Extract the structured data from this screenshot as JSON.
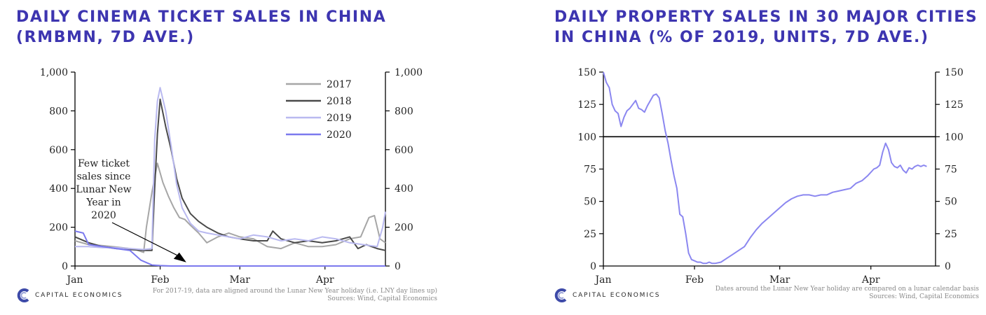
{
  "colors": {
    "title": "#3d35b0",
    "s2017": "#a6a6a6",
    "s2018": "#4a4a4a",
    "s2019": "#b9b9f0",
    "s2020": "#7b79ee",
    "property": "#8b87f0",
    "logo_c": "#3d4aa8"
  },
  "brand": "CAPITAL ECONOMICS",
  "chart_data": [
    {
      "type": "line",
      "title_lines": [
        "DAILY CINEMA TICKET SALES IN CHINA",
        "(RMBMN, 7D AVE.)"
      ],
      "xlabel": "",
      "ylabel": "",
      "ylim": [
        0,
        1000
      ],
      "xlim": [
        0,
        113
      ],
      "yticks": [
        0,
        200,
        400,
        600,
        800,
        1000
      ],
      "ytick_labels": [
        "0",
        "200",
        "400",
        "600",
        "800",
        "1,000"
      ],
      "x_ticks": [
        0,
        31,
        60,
        91
      ],
      "x_tick_labels": [
        "Jan",
        "Feb",
        "Mar",
        "Apr"
      ],
      "legend_position": "top-right",
      "annotation": {
        "lines": [
          "Few ticket",
          "sales since",
          "Lunar New",
          "Year in",
          "2020"
        ],
        "arrow_to": [
          40,
          30
        ]
      },
      "footnote": "For 2017-19, data are aligned around the Lunar New Year holiday (i.e. LNY day lines up)",
      "source": "Sources: Wind, Capital Economics",
      "series": [
        {
          "name": "2017",
          "color_key": "s2017",
          "x": [
            0,
            5,
            10,
            15,
            20,
            22,
            25,
            26,
            28,
            30,
            32,
            34,
            36,
            38,
            40,
            42,
            45,
            48,
            52,
            56,
            60,
            65,
            70,
            75,
            80,
            85,
            90,
            95,
            100,
            104,
            107,
            109,
            111,
            113
          ],
          "y": [
            130,
            110,
            105,
            98,
            90,
            85,
            70,
            200,
            380,
            530,
            430,
            360,
            300,
            250,
            240,
            210,
            170,
            120,
            150,
            170,
            150,
            140,
            100,
            90,
            120,
            100,
            100,
            110,
            140,
            150,
            250,
            260,
            140,
            120
          ]
        },
        {
          "name": "2018",
          "color_key": "s2018",
          "x": [
            0,
            5,
            10,
            15,
            20,
            25,
            28,
            29,
            30,
            31,
            33,
            35,
            37,
            39,
            42,
            45,
            48,
            52,
            56,
            60,
            65,
            70,
            72,
            75,
            80,
            85,
            90,
            95,
            100,
            103,
            106,
            110,
            113
          ],
          "y": [
            150,
            120,
            100,
            90,
            85,
            80,
            80,
            400,
            680,
            860,
            720,
            600,
            450,
            350,
            270,
            230,
            200,
            170,
            150,
            140,
            130,
            130,
            180,
            140,
            120,
            130,
            120,
            130,
            150,
            90,
            110,
            90,
            80
          ]
        },
        {
          "name": "2019",
          "color_key": "s2019",
          "x": [
            0,
            5,
            10,
            15,
            20,
            25,
            28,
            29,
            30,
            31,
            33,
            35,
            37,
            39,
            42,
            45,
            48,
            52,
            56,
            60,
            65,
            70,
            75,
            80,
            85,
            90,
            95,
            100,
            105,
            110,
            112,
            113
          ],
          "y": [
            100,
            100,
            95,
            95,
            90,
            85,
            90,
            650,
            850,
            920,
            800,
            620,
            420,
            300,
            220,
            180,
            170,
            160,
            150,
            140,
            160,
            150,
            130,
            140,
            130,
            150,
            140,
            120,
            110,
            100,
            200,
            280
          ]
        },
        {
          "name": "2020",
          "color_key": "s2020",
          "x": [
            0,
            3,
            5,
            10,
            15,
            20,
            24,
            28,
            31,
            35,
            60,
            91,
            113
          ],
          "y": [
            180,
            170,
            110,
            100,
            90,
            80,
            30,
            5,
            2,
            0,
            0,
            0,
            0
          ]
        }
      ]
    },
    {
      "type": "line",
      "title_lines": [
        "DAILY PROPERTY SALES IN 30 MAJOR CITIES",
        "IN CHINA (% OF 2019, UNITS, 7D AVE.)"
      ],
      "xlabel": "",
      "ylabel": "",
      "ylim": [
        0,
        150
      ],
      "xlim": [
        0,
        113
      ],
      "yticks": [
        0,
        25,
        50,
        75,
        100,
        125,
        150
      ],
      "ytick_labels": [
        "0",
        "25",
        "50",
        "75",
        "100",
        "125",
        "150"
      ],
      "x_ticks": [
        0,
        31,
        60,
        91
      ],
      "x_tick_labels": [
        "Jan",
        "Feb",
        "Mar",
        "Apr"
      ],
      "reference_line": 100,
      "footnote": "Dates around the Lunar New Year holiday are compared on a lunar calendar basis",
      "source": "Sources: Wind, Capital Economics",
      "series": [
        {
          "name": "Property sales",
          "color_key": "property",
          "x": [
            0,
            1,
            2,
            3,
            4,
            5,
            6,
            7,
            8,
            9,
            10,
            11,
            12,
            13,
            14,
            15,
            16,
            17,
            18,
            19,
            20,
            21,
            22,
            23,
            24,
            25,
            26,
            27,
            28,
            29,
            30,
            31,
            32,
            33,
            34,
            35,
            36,
            37,
            38,
            40,
            42,
            44,
            46,
            48,
            50,
            52,
            54,
            56,
            58,
            60,
            62,
            64,
            66,
            68,
            70,
            72,
            74,
            76,
            78,
            80,
            82,
            84,
            86,
            88,
            90,
            92,
            93,
            94,
            95,
            96,
            97,
            98,
            99,
            100,
            101,
            102,
            103,
            104,
            105,
            106,
            107,
            108,
            109,
            110
          ],
          "y": [
            150,
            142,
            138,
            125,
            120,
            118,
            108,
            115,
            120,
            122,
            125,
            128,
            122,
            121,
            119,
            124,
            128,
            132,
            133,
            130,
            118,
            105,
            95,
            82,
            70,
            60,
            40,
            38,
            25,
            10,
            5,
            4,
            3,
            3,
            2,
            2,
            3,
            2,
            2,
            3,
            6,
            9,
            12,
            15,
            22,
            28,
            33,
            37,
            41,
            45,
            49,
            52,
            54,
            55,
            55,
            54,
            55,
            55,
            57,
            58,
            59,
            60,
            64,
            66,
            70,
            75,
            76,
            78,
            88,
            95,
            90,
            80,
            77,
            76,
            78,
            74,
            72,
            76,
            75,
            77,
            78,
            77,
            78,
            77
          ]
        }
      ]
    }
  ]
}
